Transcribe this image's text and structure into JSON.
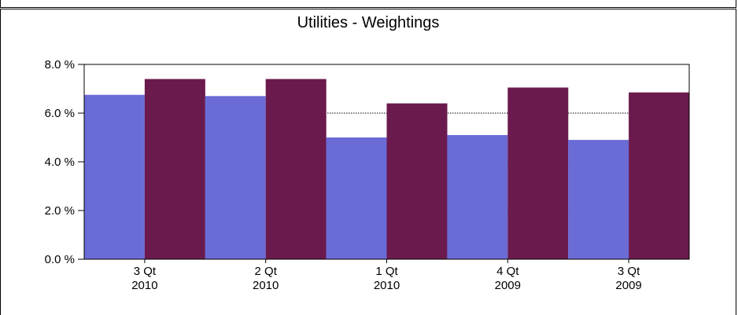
{
  "chart_data": {
    "type": "bar",
    "title": "Utilities  -  Weightings",
    "xlabel": "",
    "ylabel": "",
    "categories": [
      [
        "3 Qt",
        "2010"
      ],
      [
        "2 Qt",
        "2010"
      ],
      [
        "1 Qt",
        "2010"
      ],
      [
        "4 Qt",
        "2009"
      ],
      [
        "3 Qt",
        "2009"
      ]
    ],
    "series": [
      {
        "values": [
          6.75,
          6.7,
          5.0,
          5.1,
          4.9
        ],
        "color": "#6b6bd6"
      },
      {
        "values": [
          7.4,
          7.4,
          6.4,
          7.05,
          6.85
        ],
        "color": "#6b1a4e"
      }
    ],
    "ylim": [
      0,
      8
    ],
    "yticks": [
      "0.0 %",
      "2.0 %",
      "4.0 %",
      "6.0 %",
      "8.0 %"
    ],
    "grid": "horizontal dotted",
    "legend": "none"
  }
}
